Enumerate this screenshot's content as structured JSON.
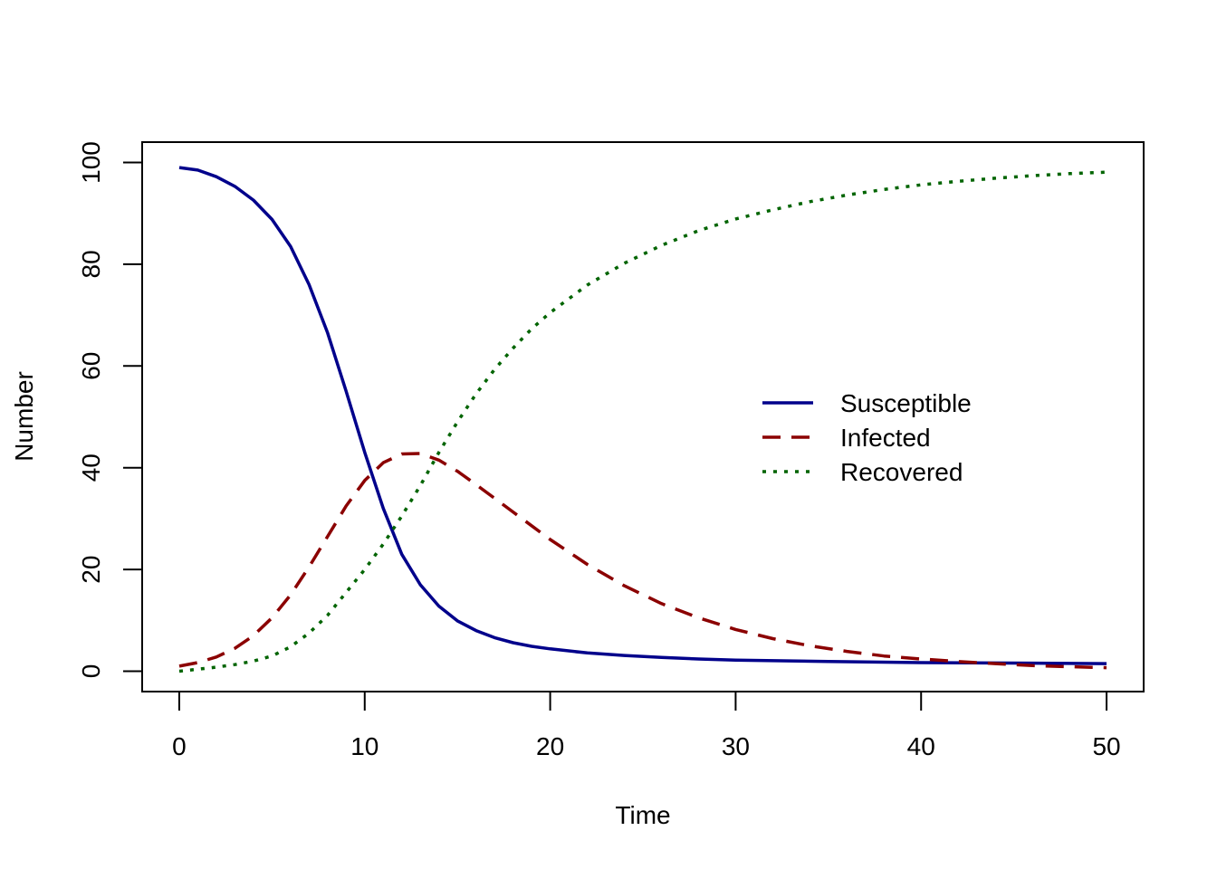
{
  "chart_data": {
    "type": "line",
    "title": "",
    "xlabel": "Time",
    "ylabel": "Number",
    "xlim": [
      -2,
      52
    ],
    "ylim": [
      -4,
      104
    ],
    "x_ticks": [
      0,
      10,
      20,
      30,
      40,
      50
    ],
    "y_ticks": [
      0,
      20,
      40,
      60,
      80,
      100
    ],
    "grid": false,
    "legend_position": "right",
    "series": [
      {
        "name": "Susceptible",
        "color": "#00008B",
        "style": "solid",
        "x": [
          0,
          1,
          2,
          3,
          4,
          5,
          6,
          7,
          8,
          9,
          10,
          11,
          12,
          13,
          14,
          15,
          16,
          17,
          18,
          19,
          20,
          22,
          24,
          26,
          28,
          30,
          35,
          40,
          45,
          50
        ],
        "y": [
          99,
          98.5,
          97.2,
          95.3,
          92.6,
          88.8,
          83.5,
          76,
          66.5,
          55,
          43,
          32,
          23,
          17,
          12.8,
          9.9,
          8,
          6.6,
          5.6,
          4.9,
          4.4,
          3.6,
          3.1,
          2.7,
          2.4,
          2.2,
          1.9,
          1.7,
          1.6,
          1.5
        ]
      },
      {
        "name": "Infected",
        "color": "#8B0000",
        "style": "dashed",
        "x": [
          0,
          1,
          2,
          3,
          4,
          5,
          6,
          7,
          8,
          9,
          10,
          11,
          12,
          13,
          14,
          15,
          16,
          17,
          18,
          19,
          20,
          22,
          24,
          26,
          28,
          30,
          32,
          34,
          36,
          38,
          40,
          42,
          44,
          46,
          48,
          50
        ],
        "y": [
          1,
          1.7,
          2.8,
          4.5,
          7,
          10.5,
          15,
          20.5,
          26.5,
          32.5,
          37.5,
          41,
          42.7,
          42.8,
          41.5,
          39.3,
          36.7,
          34,
          31.3,
          28.6,
          25.9,
          21,
          16.8,
          13.3,
          10.5,
          8.2,
          6.4,
          5,
          3.9,
          3,
          2.4,
          1.9,
          1.5,
          1.1,
          0.9,
          0.7
        ]
      },
      {
        "name": "Recovered",
        "color": "#006400",
        "style": "dotted",
        "x": [
          0,
          1,
          2,
          3,
          4,
          5,
          6,
          7,
          8,
          9,
          10,
          11,
          12,
          13,
          14,
          15,
          16,
          17,
          18,
          19,
          20,
          22,
          24,
          26,
          28,
          30,
          32,
          34,
          36,
          38,
          40,
          42,
          44,
          46,
          48,
          50
        ],
        "y": [
          0,
          0.4,
          0.8,
          1.3,
          2,
          3,
          4.8,
          7.5,
          11,
          15.5,
          20,
          25,
          30.5,
          36.5,
          43,
          49,
          54.5,
          59.3,
          63.5,
          67.3,
          70.5,
          75.9,
          80.2,
          83.7,
          86.6,
          88.9,
          90.7,
          92.3,
          93.6,
          94.7,
          95.6,
          96.3,
          96.9,
          97.4,
          97.8,
          98.1
        ]
      }
    ]
  }
}
